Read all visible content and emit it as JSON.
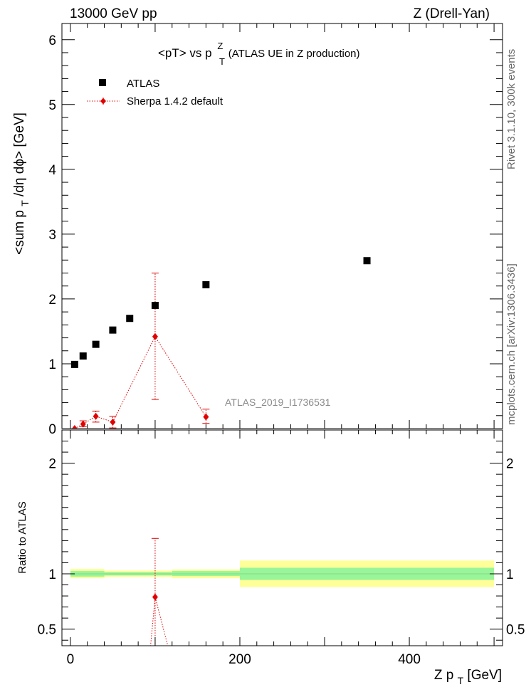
{
  "header": {
    "left": "13000 GeV pp",
    "right": "Z (Drell-Yan)"
  },
  "side_labels": {
    "rivet": "Rivet 3.1.10,  300k events",
    "mcplots": "mcplots.cern.ch [arXiv:1306.3436]"
  },
  "colors": {
    "data": "#000000",
    "mc": "#e00000",
    "band_inner": "#99f599",
    "band_outer": "#ffff99",
    "watermark": "#8a8a8a"
  },
  "chart_data": [
    {
      "type": "scatter",
      "title_main": "<pT> vs p",
      "title_sup": "Z",
      "title_sub": "T",
      "title_rest": " (ATLAS UE in Z production)",
      "ylabel_a": "<sum p",
      "ylabel_sub": "T",
      "ylabel_b": "/dη dϕ> [GeV]",
      "watermark": "ATLAS_2019_I1736531",
      "xlim": [
        -10,
        510
      ],
      "ylim": [
        0,
        6.25
      ],
      "yticks": [
        "0",
        "1",
        "2",
        "3",
        "4",
        "5",
        "6"
      ],
      "legend_position": "top-left",
      "series": [
        {
          "name": "ATLAS",
          "marker": "square",
          "x": [
            5,
            15,
            30,
            50,
            70,
            100,
            160,
            350
          ],
          "y": [
            0.99,
            1.12,
            1.3,
            1.52,
            1.7,
            1.9,
            2.22,
            2.59
          ]
        },
        {
          "name": "Sherpa 1.4.2 default",
          "marker": "diamond",
          "x": [
            5,
            15,
            30,
            50,
            100,
            160
          ],
          "y": [
            0.0,
            0.07,
            0.19,
            0.1,
            1.42,
            0.18
          ],
          "err_lo": [
            0.0,
            0.04,
            0.09,
            0.09,
            0.97,
            0.1
          ],
          "err_hi": [
            0.0,
            0.05,
            0.08,
            0.09,
            0.98,
            0.12
          ]
        }
      ]
    },
    {
      "type": "scatter",
      "ylabel": "Ratio to ATLAS",
      "xlabel_a": "Z p",
      "xlabel_sub": "T",
      "xlabel_b": " [GeV]",
      "xlim": [
        -10,
        510
      ],
      "ylim": [
        0.35,
        2.3
      ],
      "xticks": [
        "0",
        "200",
        "400"
      ],
      "yticks": [
        "0.5",
        "1",
        "2"
      ],
      "bands": [
        {
          "x0": 0,
          "x1": 40,
          "inner": [
            0.975,
            1.025
          ],
          "outer": [
            0.96,
            1.045
          ]
        },
        {
          "x0": 40,
          "x1": 120,
          "inner": [
            0.985,
            1.015
          ],
          "outer": [
            0.97,
            1.03
          ]
        },
        {
          "x0": 120,
          "x1": 200,
          "inner": [
            0.98,
            1.025
          ],
          "outer": [
            0.96,
            1.04
          ]
        },
        {
          "x0": 200,
          "x1": 500,
          "inner": [
            0.945,
            1.055
          ],
          "outer": [
            0.88,
            1.12
          ]
        }
      ],
      "series": [
        {
          "name": "Sherpa 1.4.2 default",
          "x": [
            100
          ],
          "y": [
            0.79
          ],
          "err_lo": [
            0.51
          ],
          "err_hi": [
            0.53
          ]
        }
      ]
    }
  ]
}
